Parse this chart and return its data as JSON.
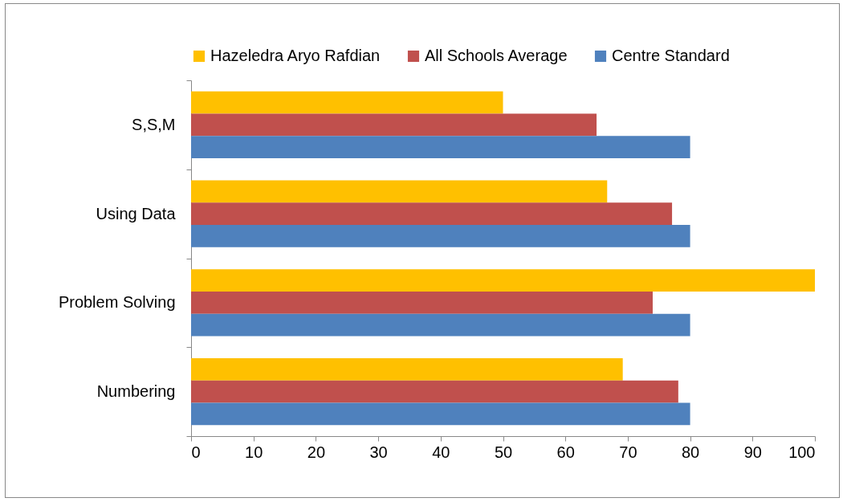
{
  "chart_data": {
    "type": "bar",
    "orientation": "horizontal",
    "categories": [
      "S,S,M",
      "Using Data",
      "Problem Solving",
      "Numbering"
    ],
    "series": [
      {
        "name": "Hazeledra Aryo Rafdian",
        "color": "#ffc000",
        "values": [
          50,
          66.7,
          100,
          69.2
        ]
      },
      {
        "name": "All Schools Average",
        "color": "#c0504d",
        "values": [
          65,
          77.1,
          74,
          78.1
        ]
      },
      {
        "name": "Centre Standard",
        "color": "#4f81bd",
        "values": [
          80,
          80,
          80,
          80
        ]
      }
    ],
    "xlim": [
      0,
      100
    ],
    "xticks": [
      0,
      10,
      20,
      30,
      40,
      50,
      60,
      70,
      80,
      90,
      100
    ],
    "grid": false,
    "legend": "top"
  }
}
